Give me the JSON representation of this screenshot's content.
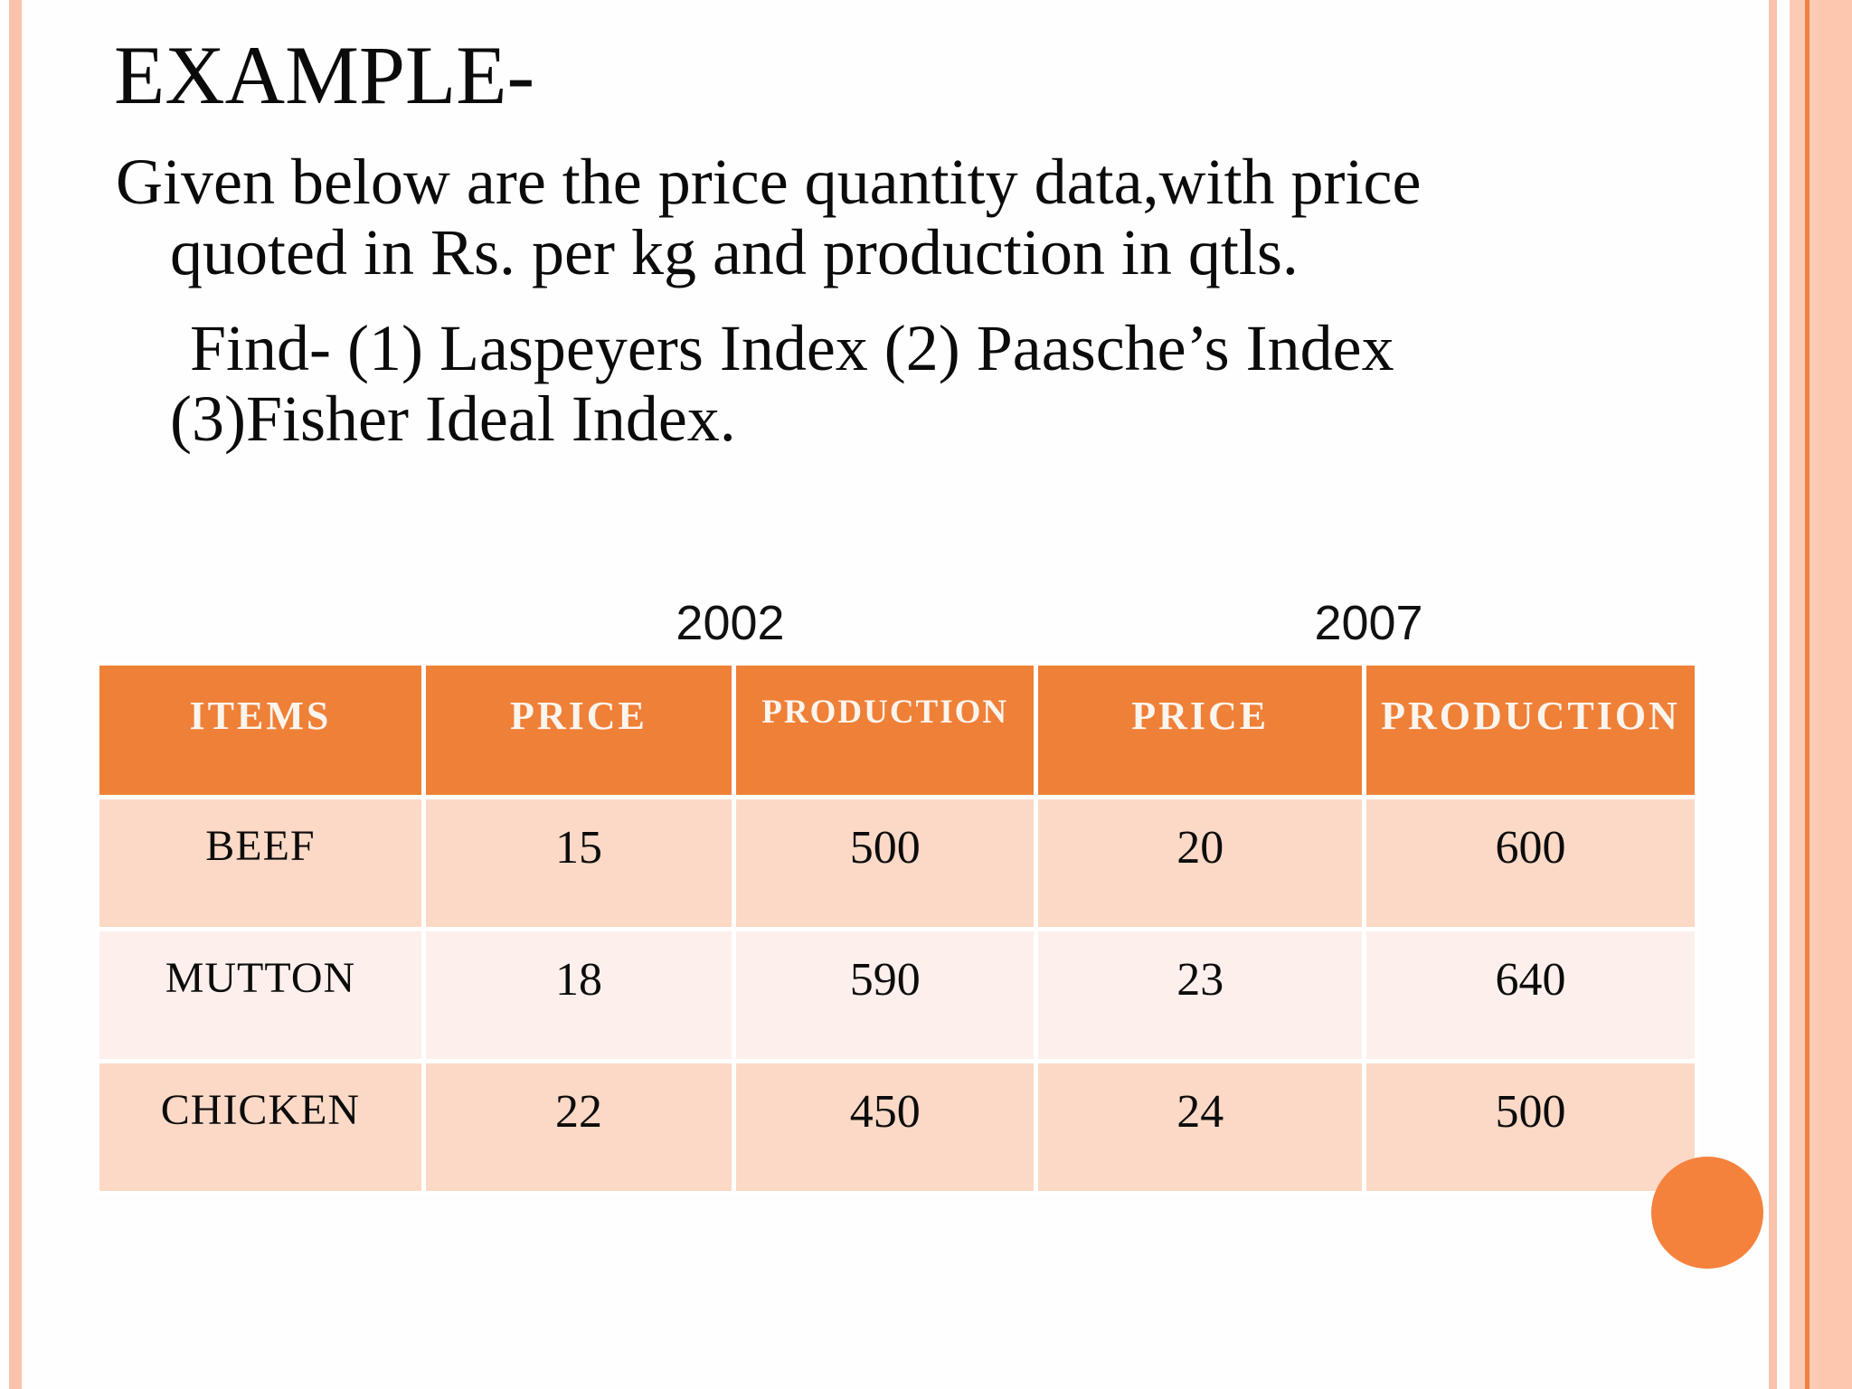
{
  "title": "EXAMPLE-",
  "body": {
    "lines": [
      "Given below are the price quantity data,with price",
      "quoted in Rs. per kg and production in qtls.",
      "Find- (1) Laspeyers Index (2) Paasche’s Index",
      "(3)Fisher Ideal Index."
    ]
  },
  "years": [
    "2002",
    "2007"
  ],
  "table": {
    "columns": [
      "ITEMS",
      "PRICE",
      "PRODUCTION",
      "PRICE",
      "PRODUCTION"
    ],
    "rows": [
      [
        "BEEF",
        "15",
        "500",
        "20",
        "600"
      ],
      [
        "MUTTON",
        "18",
        "590",
        "23",
        "640"
      ],
      [
        "CHICKEN",
        "22",
        "450",
        "24",
        "500"
      ]
    ]
  },
  "colors": {
    "accent_orange": "#ef8038",
    "circle_orange": "#f5823c",
    "row_peach_dark": "#fbd9c6",
    "row_peach_light": "#fdf0ec",
    "border_salmon": "#fbc3ab",
    "border_accent_line": "#ef8040",
    "gridline_white": "#ffffff"
  }
}
